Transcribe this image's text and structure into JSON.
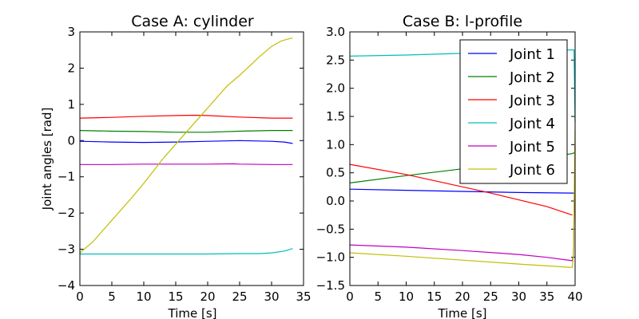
{
  "chart_data": [
    {
      "type": "line",
      "title": "Case A: cylinder",
      "xlabel": "Time [s]",
      "ylabel": "Joint angles [rad]",
      "xlim": [
        0,
        35
      ],
      "ylim": [
        -4,
        3
      ],
      "xticks": [
        "0",
        "5",
        "10",
        "15",
        "20",
        "25",
        "30",
        "35"
      ],
      "yticks": [
        "−4",
        "−3",
        "−2",
        "−1",
        "0",
        "1",
        "2",
        "3"
      ],
      "grid": false,
      "series": [
        {
          "color": "#0000ff",
          "x": [
            0,
            5,
            10,
            15,
            20,
            25,
            30,
            32,
            33.3
          ],
          "y": [
            -0.02,
            -0.04,
            -0.05,
            -0.04,
            -0.02,
            0.0,
            -0.02,
            -0.04,
            -0.08
          ]
        },
        {
          "color": "#008000",
          "x": [
            0,
            5,
            10,
            15,
            20,
            25,
            30,
            33.3
          ],
          "y": [
            0.28,
            0.26,
            0.25,
            0.23,
            0.23,
            0.26,
            0.28,
            0.28
          ]
        },
        {
          "color": "#ff0000",
          "x": [
            0,
            5,
            10,
            15,
            18,
            20,
            25,
            30,
            33.3
          ],
          "y": [
            0.62,
            0.64,
            0.67,
            0.69,
            0.7,
            0.69,
            0.65,
            0.62,
            0.62
          ]
        },
        {
          "color": "#00bfbf",
          "x": [
            0,
            5,
            10,
            15,
            20,
            25,
            28,
            30,
            32,
            33.3
          ],
          "y": [
            -3.13,
            -3.13,
            -3.13,
            -3.13,
            -3.13,
            -3.12,
            -3.12,
            -3.1,
            -3.05,
            -2.98
          ]
        },
        {
          "color": "#bf00bf",
          "x": [
            0,
            5,
            10,
            15,
            20,
            24,
            25,
            30,
            33.3
          ],
          "y": [
            -0.66,
            -0.66,
            -0.65,
            -0.65,
            -0.65,
            -0.64,
            -0.65,
            -0.66,
            -0.66
          ]
        },
        {
          "color": "#bfbf00",
          "x": [
            0,
            2,
            5,
            8,
            10,
            13,
            16,
            20,
            23,
            25,
            28,
            30,
            31.5,
            32.5,
            33.3
          ],
          "y": [
            -3.1,
            -2.8,
            -2.2,
            -1.6,
            -1.18,
            -0.5,
            0.1,
            0.9,
            1.5,
            1.8,
            2.3,
            2.6,
            2.75,
            2.8,
            2.83
          ]
        }
      ]
    },
    {
      "type": "line",
      "title": "Case B: l-profile",
      "xlabel": "Time [s]",
      "ylabel": "",
      "xlim": [
        0,
        40
      ],
      "ylim": [
        -1.5,
        3.0
      ],
      "xticks": [
        "0",
        "5",
        "10",
        "15",
        "20",
        "25",
        "30",
        "35",
        "40"
      ],
      "yticks": [
        "−1.5",
        "−1.0",
        "−0.5",
        "0.0",
        "0.5",
        "1.0",
        "1.5",
        "2.0",
        "2.5",
        "3.0"
      ],
      "grid": false,
      "legend": {
        "position": "top-right",
        "entries": [
          "Joint 1",
          "Joint 2",
          "Joint 3",
          "Joint 4",
          "Joint 5",
          "Joint 6"
        ]
      },
      "series": [
        {
          "color": "#0000ff",
          "x": [
            0,
            10,
            20,
            30,
            39.5,
            40
          ],
          "y": [
            0.21,
            0.19,
            0.17,
            0.15,
            0.14,
            0.14
          ]
        },
        {
          "color": "#008000",
          "x": [
            0,
            10,
            20,
            30,
            39.5,
            40
          ],
          "y": [
            0.32,
            0.45,
            0.57,
            0.7,
            0.84,
            0.86
          ]
        },
        {
          "color": "#ff0000",
          "x": [
            0,
            10,
            20,
            25,
            30,
            35,
            39.5
          ],
          "y": [
            0.65,
            0.47,
            0.25,
            0.14,
            0.02,
            -0.1,
            -0.25
          ]
        },
        {
          "color": "#00bfbf",
          "x": [
            0,
            10,
            20,
            25,
            30,
            35,
            39,
            39.6,
            39.8,
            40
          ],
          "y": [
            2.57,
            2.59,
            2.62,
            2.64,
            2.66,
            2.68,
            2.68,
            2.68,
            2.68,
            1.4
          ]
        },
        {
          "color": "#bf00bf",
          "x": [
            0,
            10,
            20,
            30,
            35,
            39.5,
            39.7,
            40
          ],
          "y": [
            -0.78,
            -0.82,
            -0.88,
            -0.95,
            -1.0,
            -1.06,
            -0.96,
            0.97
          ]
        },
        {
          "color": "#bfbf00",
          "x": [
            0,
            10,
            20,
            30,
            39.5,
            39.7,
            40
          ],
          "y": [
            -0.92,
            -0.98,
            -1.05,
            -1.12,
            -1.18,
            -0.95,
            1.25
          ]
        }
      ]
    }
  ]
}
